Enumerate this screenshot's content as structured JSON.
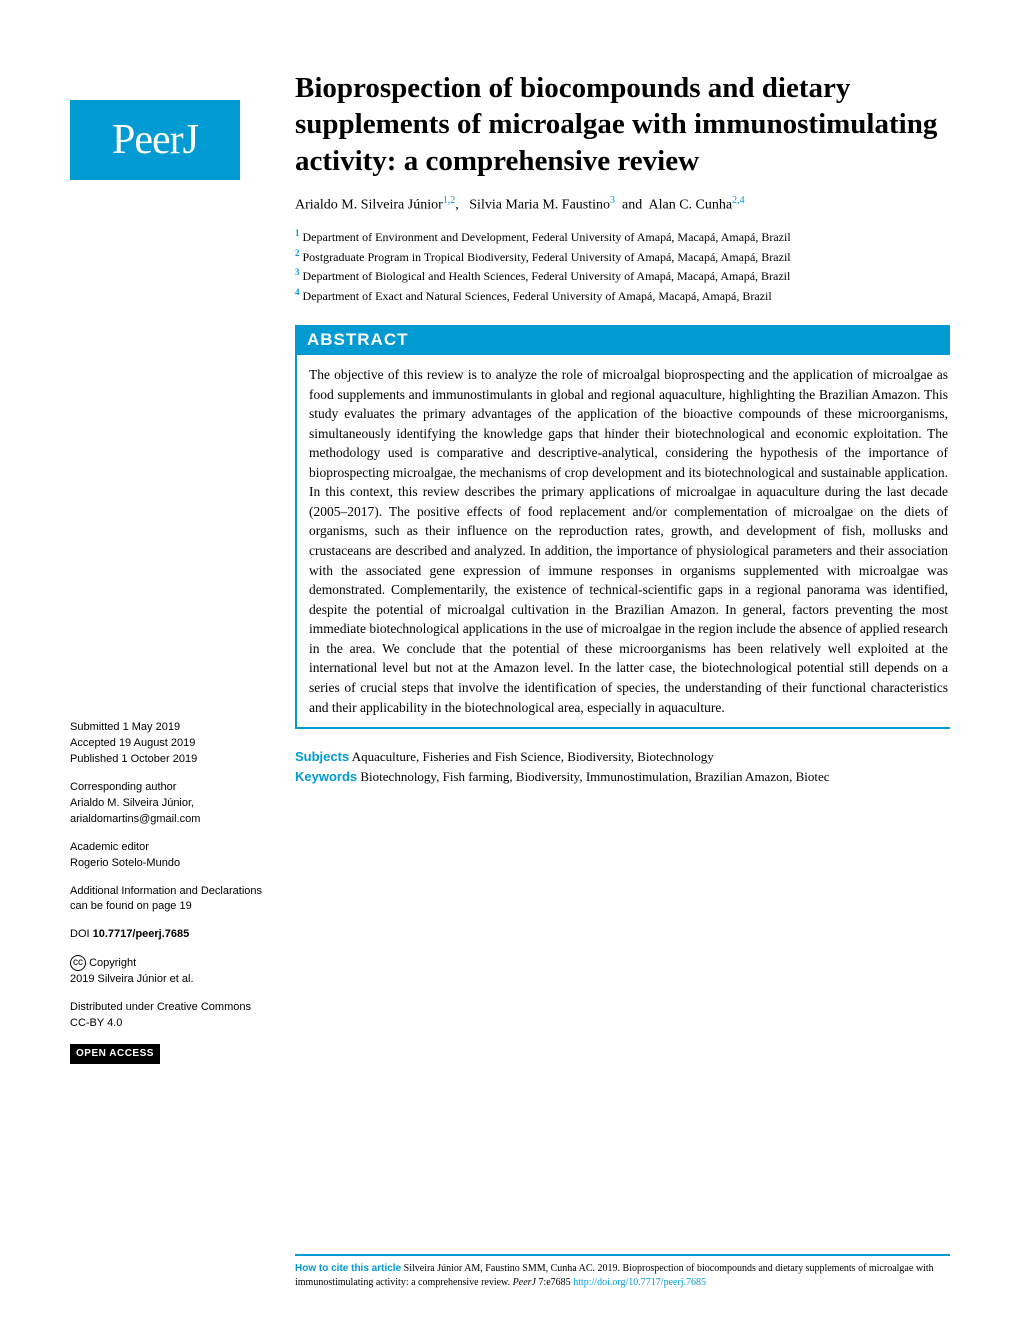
{
  "journal": {
    "logo_text": "PeerJ"
  },
  "title": "Bioprospection of biocompounds and dietary supplements of microalgae with immunostimulating activity: a comprehensive review",
  "authors": {
    "a1": {
      "name": "Arialdo M. Silveira Júnior",
      "sup": "1,2"
    },
    "a2": {
      "name": "Silvia Maria M. Faustino",
      "sup": "3"
    },
    "a3": {
      "name": "Alan C. Cunha",
      "sup": "2,4"
    }
  },
  "affiliations": {
    "n1": "1",
    "t1": "Department of Environment and Development, Federal University of Amapá, Macapá, Amapá, Brazil",
    "n2": "2",
    "t2": "Postgraduate Program in Tropical Biodiversity, Federal University of Amapá, Macapá, Amapá, Brazil",
    "n3": "3",
    "t3": "Department of Biological and Health Sciences, Federal University of Amapá, Macapá, Amapá, Brazil",
    "n4": "4",
    "t4": "Department of Exact and Natural Sciences, Federal University of Amapá, Macapá, Amapá, Brazil"
  },
  "abstract": {
    "heading": "ABSTRACT",
    "text": "The objective of this review is to analyze the role of microalgal bioprospecting and the application of microalgae as food supplements and immunostimulants in global and regional aquaculture, highlighting the Brazilian Amazon. This study evaluates the primary advantages of the application of the bioactive compounds of these microorganisms, simultaneously identifying the knowledge gaps that hinder their biotechnological and economic exploitation. The methodology used is comparative and descriptive-analytical, considering the hypothesis of the importance of bioprospecting microalgae, the mechanisms of crop development and its biotechnological and sustainable application. In this context, this review describes the primary applications of microalgae in aquaculture during the last decade (2005–2017). The positive effects of food replacement and/or complementation of microalgae on the diets of organisms, such as their influence on the reproduction rates, growth, and development of fish, mollusks and crustaceans are described and analyzed. In addition, the importance of physiological parameters and their association with the associated gene expression of immune responses in organisms supplemented with microalgae was demonstrated. Complementarily, the existence of technical-scientific gaps in a regional panorama was identified, despite the potential of microalgal cultivation in the Brazilian Amazon. In general, factors preventing the most immediate biotechnological applications in the use of microalgae in the region include the absence of applied research in the area. We conclude that the potential of these microorganisms has been relatively well exploited at the international level but not at the Amazon level. In the latter case, the biotechnological potential still depends on a series of crucial steps that involve the identification of species, the understanding of their functional characteristics and their applicability in the biotechnological area, especially in aquaculture."
  },
  "sidebar": {
    "submitted_label": "Submitted",
    "submitted": "1 May 2019",
    "accepted_label": "Accepted",
    "accepted": "19 August 2019",
    "published_label": "Published",
    "published": "1 October 2019",
    "corr_label": "Corresponding author",
    "corr_name": "Arialdo M. Silveira Júnior,",
    "corr_email": "arialdomartins@gmail.com",
    "editor_label": "Academic editor",
    "editor_name": "Rogerio Sotelo-Mundo",
    "addl": "Additional Information and Declarations can be found on page 19",
    "doi_label": "DOI",
    "doi": "10.7717/peerj.7685",
    "cc": "cc",
    "copyright_label": "Copyright",
    "copyright_text": "2019 Silveira Júnior et al.",
    "dist": "Distributed under Creative Commons CC-BY 4.0",
    "open_access": "OPEN ACCESS"
  },
  "subjects": {
    "label": "Subjects",
    "text": "Aquaculture, Fisheries and Fish Science, Biodiversity, Biotechnology"
  },
  "keywords": {
    "label": "Keywords",
    "text": "Biotechnology, Fish farming, Biodiversity, Immunostimulation, Brazilian Amazon, Biotec"
  },
  "citation": {
    "lead": "How to cite this article",
    "text": "Silveira Júnior AM, Faustino SMM, Cunha AC. 2019. Bioprospection of biocompounds and dietary supplements of microalgae with immunostimulating activity: a comprehensive review.",
    "journal": "PeerJ",
    "vol": "7:e7685",
    "url": "http://doi.org/10.7717/peerj.7685"
  },
  "colors": {
    "brand": "#029ad3",
    "text": "#000000",
    "bg": "#ffffff"
  }
}
